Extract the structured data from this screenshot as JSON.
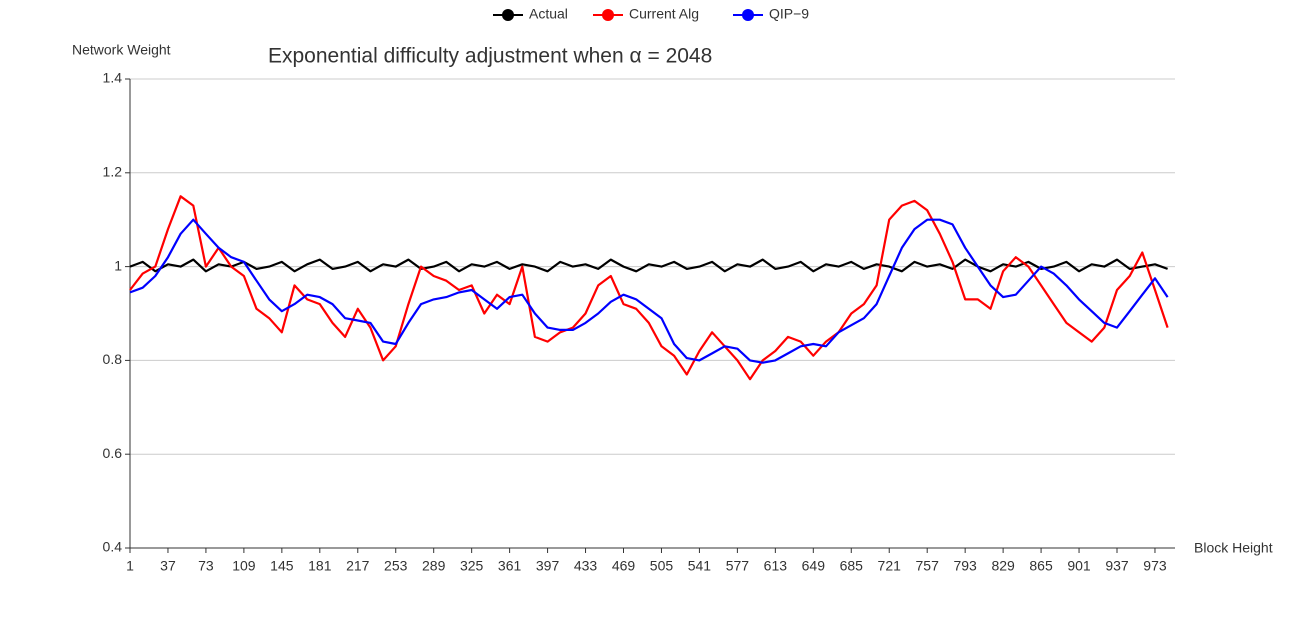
{
  "chart_data": {
    "type": "line",
    "title": "Exponential difficulty adjustment when α = 2048",
    "y_label": "Network Weight",
    "x_label": "Block Height",
    "x": [
      1,
      13,
      25,
      37,
      49,
      61,
      73,
      85,
      97,
      109,
      121,
      133,
      145,
      157,
      169,
      181,
      193,
      205,
      217,
      229,
      241,
      253,
      265,
      277,
      289,
      301,
      313,
      325,
      337,
      349,
      361,
      373,
      385,
      397,
      409,
      421,
      433,
      445,
      457,
      469,
      481,
      493,
      505,
      517,
      529,
      541,
      553,
      565,
      577,
      589,
      601,
      613,
      625,
      637,
      649,
      661,
      673,
      685,
      697,
      709,
      721,
      733,
      745,
      757,
      769,
      781,
      793,
      805,
      817,
      829,
      841,
      853,
      865,
      877,
      889,
      901,
      913,
      925,
      937,
      949,
      961,
      973,
      985
    ],
    "xlim": [
      1,
      992
    ],
    "xticks": [
      1,
      37,
      73,
      109,
      145,
      181,
      217,
      253,
      289,
      325,
      361,
      397,
      433,
      469,
      505,
      541,
      577,
      613,
      649,
      685,
      721,
      757,
      793,
      829,
      865,
      901,
      937,
      973
    ],
    "ylim": [
      0.4,
      1.4
    ],
    "yticks": [
      0.4,
      0.6,
      0.8,
      1,
      1.2,
      1.4
    ],
    "grid": true,
    "legend": "top",
    "series": [
      {
        "name": "Actual",
        "color": "#000000",
        "values": [
          1.0,
          1.01,
          0.99,
          1.005,
          1.0,
          1.015,
          0.99,
          1.005,
          1.0,
          1.01,
          0.995,
          1.0,
          1.01,
          0.99,
          1.005,
          1.015,
          0.995,
          1.0,
          1.01,
          0.99,
          1.005,
          1.0,
          1.015,
          0.995,
          1.0,
          1.01,
          0.99,
          1.005,
          1.0,
          1.01,
          0.995,
          1.005,
          1.0,
          0.99,
          1.01,
          1.0,
          1.005,
          0.995,
          1.015,
          1.0,
          0.99,
          1.005,
          1.0,
          1.01,
          0.995,
          1.0,
          1.01,
          0.99,
          1.005,
          1.0,
          1.015,
          0.995,
          1.0,
          1.01,
          0.99,
          1.005,
          1.0,
          1.01,
          0.995,
          1.005,
          1.0,
          0.99,
          1.01,
          1.0,
          1.005,
          0.995,
          1.015,
          1.0,
          0.99,
          1.005,
          1.0,
          1.01,
          0.995,
          1.0,
          1.01,
          0.99,
          1.005,
          1.0,
          1.015,
          0.995,
          1.0,
          1.005,
          0.995
        ]
      },
      {
        "name": "Current Alg",
        "color": "#ff0000",
        "values": [
          0.95,
          0.985,
          1.0,
          1.08,
          1.15,
          1.13,
          1.0,
          1.04,
          1.0,
          0.98,
          0.91,
          0.89,
          0.86,
          0.96,
          0.93,
          0.92,
          0.88,
          0.85,
          0.91,
          0.87,
          0.8,
          0.83,
          0.92,
          1.0,
          0.98,
          0.97,
          0.95,
          0.96,
          0.9,
          0.94,
          0.92,
          1.0,
          0.85,
          0.84,
          0.86,
          0.87,
          0.9,
          0.96,
          0.98,
          0.92,
          0.91,
          0.88,
          0.83,
          0.81,
          0.77,
          0.82,
          0.86,
          0.83,
          0.8,
          0.76,
          0.8,
          0.82,
          0.85,
          0.84,
          0.81,
          0.84,
          0.86,
          0.9,
          0.92,
          0.96,
          1.1,
          1.13,
          1.14,
          1.12,
          1.07,
          1.01,
          0.93,
          0.93,
          0.91,
          0.99,
          1.02,
          1.0,
          0.96,
          0.92,
          0.88,
          0.86,
          0.84,
          0.87,
          0.95,
          0.98,
          1.03,
          0.95,
          0.87
        ]
      },
      {
        "name": "QIP−9",
        "color": "#0000ff",
        "values": [
          0.945,
          0.955,
          0.98,
          1.02,
          1.07,
          1.1,
          1.07,
          1.04,
          1.02,
          1.01,
          0.97,
          0.93,
          0.905,
          0.92,
          0.94,
          0.935,
          0.92,
          0.89,
          0.885,
          0.88,
          0.84,
          0.835,
          0.88,
          0.92,
          0.93,
          0.935,
          0.945,
          0.95,
          0.93,
          0.91,
          0.935,
          0.94,
          0.9,
          0.87,
          0.865,
          0.865,
          0.88,
          0.9,
          0.925,
          0.94,
          0.93,
          0.91,
          0.89,
          0.835,
          0.805,
          0.8,
          0.815,
          0.83,
          0.825,
          0.8,
          0.795,
          0.8,
          0.815,
          0.83,
          0.835,
          0.83,
          0.86,
          0.875,
          0.89,
          0.92,
          0.98,
          1.04,
          1.08,
          1.1,
          1.1,
          1.09,
          1.04,
          1.0,
          0.96,
          0.935,
          0.94,
          0.97,
          1.0,
          0.985,
          0.96,
          0.93,
          0.905,
          0.88,
          0.87,
          0.905,
          0.94,
          0.975,
          0.935
        ]
      }
    ]
  }
}
